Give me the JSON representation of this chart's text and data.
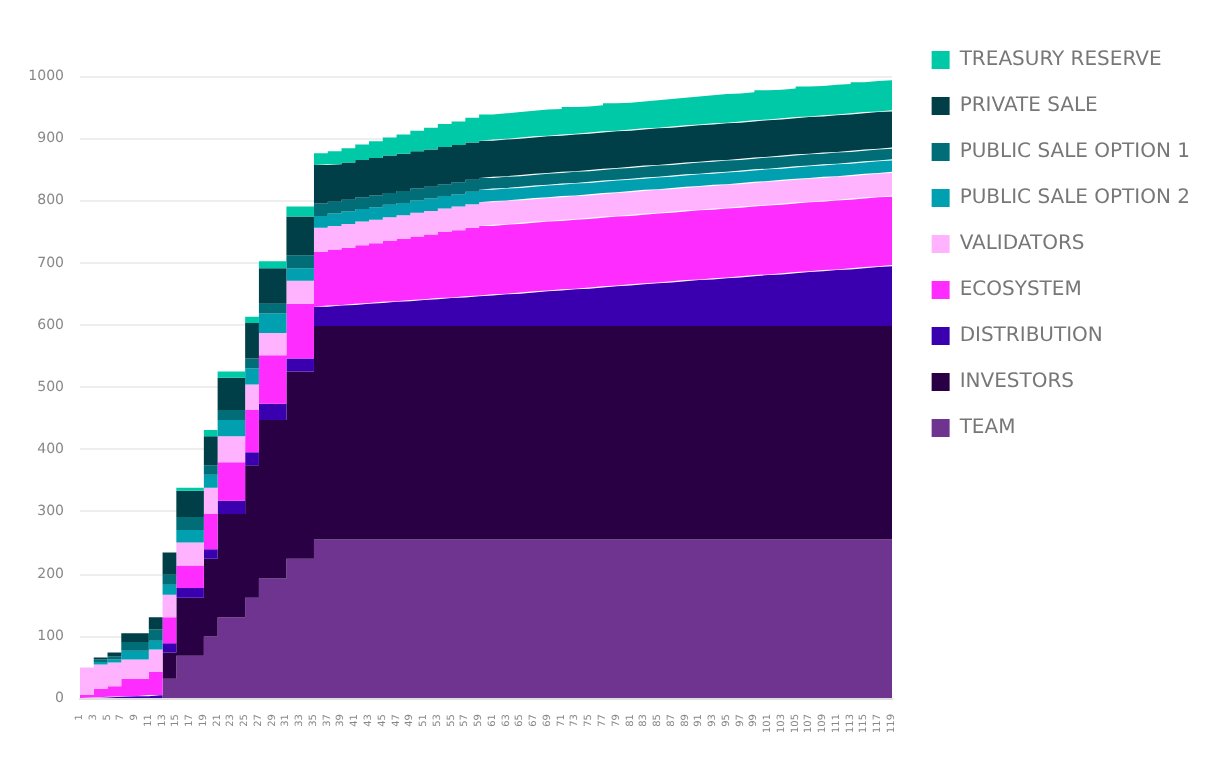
{
  "chart_data": {
    "type": "area",
    "stacked": true,
    "legend": "right",
    "grid": "y",
    "ylim": [
      0,
      1000
    ],
    "yticks": [
      0,
      100,
      200,
      300,
      400,
      500,
      600,
      700,
      800,
      900,
      1000
    ],
    "categories": [
      "1",
      "3",
      "5",
      "7",
      "9",
      "11",
      "13",
      "15",
      "17",
      "19",
      "21",
      "23",
      "25",
      "27",
      "29",
      "31",
      "33",
      "35",
      "37",
      "39",
      "41",
      "43",
      "45",
      "47",
      "49",
      "51",
      "53",
      "55",
      "57",
      "59",
      "61",
      "63",
      "65",
      "67",
      "69",
      "71",
      "73",
      "75",
      "77",
      "79",
      "81",
      "83",
      "85",
      "87",
      "89",
      "91",
      "93",
      "95",
      "97",
      "99",
      "101",
      "103",
      "105",
      "107",
      "109",
      "111",
      "113",
      "115",
      "117",
      "119"
    ],
    "series": [
      {
        "name": "TEAM",
        "color": "#6f3390",
        "values": [
          0,
          0,
          0,
          0,
          0,
          0,
          31,
          68,
          68,
          99,
          130,
          130,
          161,
          192,
          192,
          224,
          224,
          255,
          255,
          255,
          255,
          255,
          255,
          255,
          255,
          255,
          255,
          255,
          255,
          255,
          255,
          255,
          255,
          255,
          255,
          255,
          255,
          255,
          255,
          255,
          255,
          255,
          255,
          255,
          255,
          255,
          255,
          255,
          255,
          255,
          255,
          255,
          255,
          255,
          255,
          255,
          255,
          255,
          255,
          255
        ]
      },
      {
        "name": "INVESTORS",
        "color": "#2a0045",
        "values": [
          0,
          0,
          0,
          0,
          0,
          0,
          42,
          93,
          93,
          125,
          166,
          166,
          213,
          255,
          255,
          301,
          301,
          343,
          343,
          343,
          343,
          343,
          343,
          343,
          343,
          343,
          343,
          343,
          343,
          343,
          343,
          343,
          343,
          343,
          343,
          343,
          343,
          343,
          343,
          343,
          343,
          343,
          343,
          343,
          343,
          343,
          343,
          343,
          343,
          343,
          343,
          343,
          343,
          343,
          343,
          343,
          343,
          343,
          343,
          343
        ]
      },
      {
        "name": "DISTRIBUTION",
        "color": "#3a00b0",
        "values": [
          0,
          1,
          2,
          3,
          3,
          5,
          15,
          16,
          16,
          15,
          21,
          21,
          21,
          26,
          26,
          21,
          21,
          31,
          33,
          34,
          36,
          37,
          39,
          40,
          42,
          43,
          45,
          46,
          48,
          49,
          51,
          52,
          54,
          56,
          57,
          59,
          60,
          62,
          64,
          65,
          67,
          69,
          70,
          72,
          74,
          75,
          77,
          78,
          80,
          82,
          83,
          85,
          87,
          88,
          90,
          91,
          93,
          95,
          96,
          98
        ]
      },
      {
        "name": "ECOSYSTEM",
        "color": "#ff2cff",
        "values": [
          5,
          14,
          17,
          28,
          28,
          37,
          42,
          36,
          36,
          57,
          62,
          62,
          68,
          78,
          78,
          88,
          88,
          88,
          90,
          92,
          94,
          96,
          98,
          100,
          102,
          104,
          106,
          108,
          110,
          112,
          112,
          112,
          112,
          112,
          112,
          112,
          112,
          112,
          112,
          112,
          112,
          112,
          112,
          112,
          112,
          112,
          112,
          112,
          112,
          112,
          112,
          112,
          112,
          112,
          112,
          112,
          112,
          112,
          112,
          112
        ]
      },
      {
        "name": "VALIDATORS",
        "color": "#ffb3ff",
        "values": [
          44,
          39,
          38,
          31,
          31,
          36,
          36,
          37,
          37,
          42,
          42,
          42,
          41,
          36,
          36,
          37,
          37,
          39,
          38,
          38,
          38,
          38,
          38,
          38,
          38,
          38,
          38,
          38,
          38,
          38,
          38,
          38,
          38,
          38,
          38,
          38,
          38,
          38,
          38,
          38,
          38,
          38,
          38,
          38,
          38,
          38,
          38,
          38,
          38,
          38,
          38,
          38,
          38,
          38,
          38,
          38,
          38,
          38,
          38,
          38
        ]
      },
      {
        "name": "PUBLIC SALE OPTION 2",
        "color": "#00a0b0",
        "values": [
          0,
          4,
          5,
          14,
          14,
          14,
          16,
          20,
          20,
          21,
          26,
          26,
          26,
          31,
          31,
          20,
          20,
          19,
          20,
          20,
          20,
          20,
          20,
          20,
          20,
          20,
          20,
          20,
          20,
          20,
          20,
          20,
          20,
          20,
          20,
          20,
          20,
          20,
          20,
          20,
          20,
          20,
          20,
          20,
          20,
          20,
          20,
          20,
          20,
          20,
          20,
          20,
          20,
          20,
          20,
          20,
          20,
          20,
          20,
          20
        ]
      },
      {
        "name": "PUBLIC SALE OPTION 1",
        "color": "#006d77",
        "values": [
          0,
          4,
          5,
          14,
          14,
          18,
          16,
          21,
          21,
          15,
          16,
          16,
          16,
          16,
          16,
          21,
          21,
          20,
          19,
          19,
          19,
          19,
          19,
          19,
          19,
          19,
          19,
          19,
          19,
          19,
          19,
          19,
          19,
          19,
          19,
          19,
          19,
          19,
          19,
          19,
          19,
          19,
          19,
          19,
          19,
          19,
          19,
          19,
          19,
          19,
          19,
          19,
          19,
          19,
          19,
          19,
          19,
          19,
          19,
          19
        ]
      },
      {
        "name": "PRIVATE SALE",
        "color": "#003f47",
        "values": [
          0,
          3,
          6,
          14,
          14,
          20,
          36,
          42,
          42,
          47,
          52,
          52,
          57,
          57,
          57,
          62,
          62,
          62,
          60,
          60,
          60,
          60,
          60,
          60,
          60,
          60,
          60,
          60,
          60,
          60,
          60,
          60,
          60,
          60,
          60,
          60,
          60,
          60,
          60,
          60,
          60,
          60,
          60,
          60,
          60,
          60,
          60,
          60,
          60,
          60,
          60,
          60,
          60,
          60,
          60,
          60,
          60,
          60,
          60,
          60
        ]
      },
      {
        "name": "TREASURY RESERVE",
        "color": "#00c9a7",
        "values": [
          0,
          0,
          0,
          0,
          0,
          0,
          0,
          5,
          5,
          10,
          10,
          10,
          10,
          11,
          11,
          16,
          16,
          19,
          21,
          23,
          25,
          27,
          29,
          31,
          33,
          35,
          37,
          38,
          40,
          42,
          42,
          43,
          43,
          43,
          43,
          44,
          44,
          44,
          45,
          45,
          45,
          45,
          46,
          46,
          46,
          47,
          47,
          47,
          47,
          48,
          48,
          48,
          49,
          49,
          49,
          49,
          50,
          50,
          50,
          50
        ]
      }
    ]
  }
}
